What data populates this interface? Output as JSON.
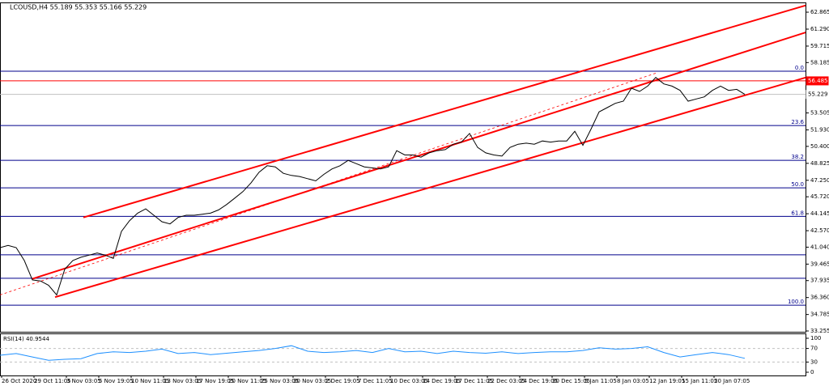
{
  "chart_data": [
    {
      "type": "line",
      "title": "LCOUSD,H4  55.189 55.353 55.166 55.229",
      "color": "#000000",
      "x": [
        0,
        1,
        2,
        3,
        4,
        5,
        6,
        7,
        8,
        9,
        10,
        11,
        12,
        13,
        14,
        15,
        16,
        17,
        18,
        19,
        20,
        21,
        22,
        23,
        24,
        25,
        26,
        27,
        28,
        29,
        30,
        31,
        32,
        33,
        34,
        35,
        36,
        37,
        38,
        39,
        40,
        41,
        42,
        43,
        44,
        45,
        46,
        47,
        48,
        49,
        50,
        51,
        52,
        53,
        54,
        55,
        56,
        57,
        58,
        59,
        60,
        61,
        62,
        63,
        64,
        65,
        66,
        67,
        68,
        69,
        70,
        71,
        72,
        73,
        74,
        75,
        76,
        77,
        78,
        79,
        80,
        81,
        82,
        83,
        84,
        85,
        86,
        87,
        88,
        89,
        90,
        91,
        92
      ],
      "values": [
        41.0,
        41.2,
        41.0,
        39.8,
        38.0,
        37.9,
        37.5,
        36.6,
        39.0,
        39.8,
        40.1,
        40.3,
        40.5,
        40.3,
        40.0,
        42.5,
        43.5,
        44.2,
        44.6,
        44.0,
        43.4,
        43.2,
        43.8,
        44.0,
        44.0,
        44.1,
        44.2,
        44.5,
        45.0,
        45.6,
        46.2,
        47.0,
        48.0,
        48.6,
        48.5,
        47.9,
        47.7,
        47.6,
        47.4,
        47.2,
        47.8,
        48.3,
        48.6,
        49.1,
        48.8,
        48.5,
        48.4,
        48.3,
        48.5,
        50.0,
        49.6,
        49.6,
        49.4,
        49.8,
        50.0,
        50.1,
        50.6,
        50.8,
        51.6,
        50.3,
        49.8,
        49.6,
        49.5,
        50.3,
        50.6,
        50.7,
        50.6,
        50.9,
        50.8,
        50.9,
        50.9,
        51.8,
        50.5,
        52.0,
        53.6,
        54.0,
        54.4,
        54.6,
        55.8,
        55.5,
        56.0,
        56.8,
        56.2,
        56.0,
        55.6,
        54.6,
        54.8,
        55.0,
        55.6,
        56.0,
        55.6,
        55.7,
        55.229
      ],
      "xlim": [
        0,
        99.5
      ],
      "ylim": [
        33.18,
        63.62
      ],
      "yticks": [
        62.865,
        {
          "value": 61.29,
          "label": "61.290"
        },
        59.715,
        58.185,
        53.505,
        {
          "value": 51.93,
          "label": "51.930"
        },
        {
          "value": 50.4,
          "label": "50.400"
        },
        48.825,
        {
          "value": 47.25,
          "label": "47.250"
        },
        {
          "value": 45.72,
          "label": "45.720"
        },
        44.145,
        {
          "value": 42.57,
          "label": "42.570"
        },
        {
          "value": 41.04,
          "label": "41.040"
        },
        39.465,
        37.935,
        {
          "value": 36.36,
          "label": "36.360"
        },
        34.785,
        33.255
      ],
      "xticks": [
        {
          "value": 0,
          "label": "26 Oct 2020"
        },
        {
          "value": 4,
          "label": "29 Oct 11:05"
        },
        {
          "value": 8,
          "label": "3 Nov 03:05"
        },
        {
          "value": 12,
          "label": "5 Nov 19:05"
        },
        {
          "value": 16,
          "label": "10 Nov 11:05"
        },
        {
          "value": 20,
          "label": "13 Nov 03:05"
        },
        {
          "value": 24,
          "label": "17 Nov 19:05"
        },
        {
          "value": 28,
          "label": "20 Nov 11:05"
        },
        {
          "value": 32,
          "label": "25 Nov 03:05"
        },
        {
          "value": 36,
          "label": "30 Nov 03:05"
        },
        {
          "value": 40,
          "label": "2 Dec 19:05"
        },
        {
          "value": 44,
          "label": "7 Dec 11:05"
        },
        {
          "value": 48,
          "label": "10 Dec 03:05"
        },
        {
          "value": 52,
          "label": "14 Dec 19:05"
        },
        {
          "value": 56,
          "label": "17 Dec 11:05"
        },
        {
          "value": 60,
          "label": "22 Dec 03:05"
        },
        {
          "value": 64,
          "label": "24 Dec 19:05"
        },
        {
          "value": 68,
          "label": "30 Dec 15:05"
        },
        {
          "value": 72,
          "label": "5 Jan 11:05"
        },
        {
          "value": 76,
          "label": "8 Jan 03:05"
        },
        {
          "value": 80,
          "label": "12 Jan 19:05"
        },
        {
          "value": 84,
          "label": "15 Jan 11:05"
        },
        {
          "value": 88,
          "label": "20 Jan 07:05"
        }
      ],
      "fib_color": "#00008b",
      "fib_levels": [
        {
          "label": "0.0",
          "price": 57.38
        },
        {
          "label": "23.6",
          "price": 52.34
        },
        {
          "label": "38.2",
          "price": 49.1
        },
        {
          "label": "50.0",
          "price": 46.55
        },
        {
          "label": "61.8",
          "price": 43.9
        },
        {
          "label": "100.0",
          "price": 35.65
        }
      ],
      "hlines": [
        {
          "value": 40.33,
          "color": "#00008b"
        },
        {
          "value": 38.15,
          "color": "#00008b"
        },
        {
          "value": 56.485,
          "color": "#ff0000"
        },
        {
          "value": 55.229,
          "color": "#c0c0c0"
        }
      ],
      "price_markers": [
        {
          "value": 56.485,
          "color": "#ff0000",
          "text_color": "#ffffff"
        },
        {
          "value": 55.229,
          "color": "#ffffff",
          "text_color": "#000000"
        }
      ],
      "trendlines": [
        {
          "x": [
            10.3,
            100
          ],
          "y": [
            43.8,
            63.6
          ],
          "color": "#ff0000",
          "dashed": false
        },
        {
          "x": [
            4,
            100
          ],
          "y": [
            38.1,
            61.1
          ],
          "color": "#ff0000",
          "dashed": false
        },
        {
          "x": [
            6.8,
            100
          ],
          "y": [
            36.4,
            56.9
          ],
          "color": "#ff0000",
          "dashed": false
        },
        {
          "x": [
            0,
            81
          ],
          "y": [
            36.6,
            57.2
          ],
          "color": "#ff0000",
          "dashed": true
        }
      ]
    },
    {
      "type": "line",
      "title": "RSI(14) 40.9544",
      "color": "#1e90ff",
      "x": [
        0,
        2,
        4,
        6,
        8,
        10,
        12,
        14,
        16,
        18,
        20,
        22,
        24,
        26,
        28,
        30,
        32,
        34,
        36,
        38,
        40,
        42,
        44,
        46,
        48,
        50,
        52,
        54,
        56,
        58,
        60,
        62,
        64,
        66,
        68,
        70,
        72,
        74,
        76,
        78,
        80,
        82,
        84,
        86,
        88,
        90,
        92
      ],
      "values": [
        50,
        55,
        45,
        35,
        38,
        40,
        55,
        60,
        58,
        62,
        68,
        55,
        58,
        52,
        56,
        60,
        64,
        70,
        78,
        62,
        58,
        60,
        64,
        58,
        70,
        60,
        62,
        55,
        62,
        58,
        56,
        60,
        55,
        58,
        60,
        60,
        64,
        72,
        68,
        70,
        75,
        58,
        45,
        52,
        58,
        52,
        41
      ],
      "xlim": [
        0,
        99.5
      ],
      "ylim": [
        0,
        100
      ],
      "yticks": [
        100,
        70,
        30,
        0
      ]
    }
  ]
}
